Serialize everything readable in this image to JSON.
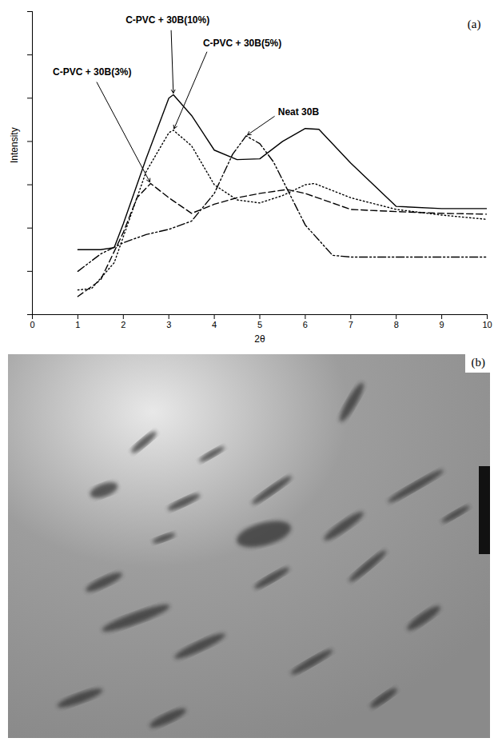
{
  "chart_data": {
    "type": "line",
    "panel_label": "(a)",
    "x_label": "2θ",
    "y_label": "Intensity",
    "xlim": [
      0,
      10
    ],
    "xticks": [
      0,
      1,
      2,
      3,
      4,
      5,
      6,
      7,
      8,
      9,
      10
    ],
    "ylim": [
      0,
      7
    ],
    "yticks": [
      0,
      1,
      2,
      3,
      4,
      5,
      6,
      7
    ],
    "tick_labels": "x",
    "grid": false,
    "series": [
      {
        "name": "C-PVC + 30B(10%)",
        "color": "#000000",
        "line_style": "solid",
        "x": [
          1,
          1.5,
          1.8,
          2,
          2.5,
          3,
          3.1,
          3.5,
          4,
          4.5,
          5,
          5.5,
          6,
          6.3,
          7,
          8,
          9,
          10
        ],
        "values": [
          1.5,
          1.5,
          1.55,
          2.1,
          3.6,
          5.0,
          5.08,
          4.6,
          3.8,
          3.58,
          3.6,
          4.0,
          4.3,
          4.28,
          3.5,
          2.5,
          2.45,
          2.45
        ]
      },
      {
        "name": "C-PVC + 30B(5%)",
        "color": "#000000",
        "line_style": "dotted",
        "x": [
          1,
          1.3,
          1.8,
          2,
          2.5,
          3,
          3.1,
          3.5,
          4,
          4.5,
          5,
          5.5,
          6,
          6.2,
          7,
          8,
          9,
          10
        ],
        "values": [
          0.57,
          0.6,
          1.2,
          1.8,
          3.3,
          4.2,
          4.26,
          3.9,
          3.0,
          2.65,
          2.58,
          2.75,
          3.0,
          3.03,
          2.7,
          2.43,
          2.3,
          2.2
        ]
      },
      {
        "name": "C-PVC + 30B(3%)",
        "color": "#000000",
        "line_style": "dashed",
        "x": [
          1,
          1.5,
          2,
          2.3,
          2.6,
          3,
          3.5,
          4,
          4.5,
          5,
          5.6,
          6,
          7,
          8,
          9,
          10
        ],
        "values": [
          0.42,
          0.8,
          1.9,
          2.7,
          3.03,
          2.7,
          2.34,
          2.55,
          2.7,
          2.8,
          2.89,
          2.8,
          2.43,
          2.38,
          2.34,
          2.32
        ]
      },
      {
        "name": "Neat 30B",
        "color": "#000000",
        "line_style": "dashdot",
        "x": [
          1,
          1.5,
          2,
          2.5,
          3,
          3.5,
          4,
          4.4,
          4.7,
          5,
          5.3,
          6,
          6.6,
          7,
          8,
          9,
          10
        ],
        "values": [
          1.0,
          1.4,
          1.66,
          1.85,
          1.97,
          2.16,
          2.8,
          3.7,
          4.13,
          3.95,
          3.53,
          2.07,
          1.37,
          1.33,
          1.33,
          1.33,
          1.33
        ]
      }
    ]
  },
  "micrograph": {
    "panel_label": "(b)"
  }
}
